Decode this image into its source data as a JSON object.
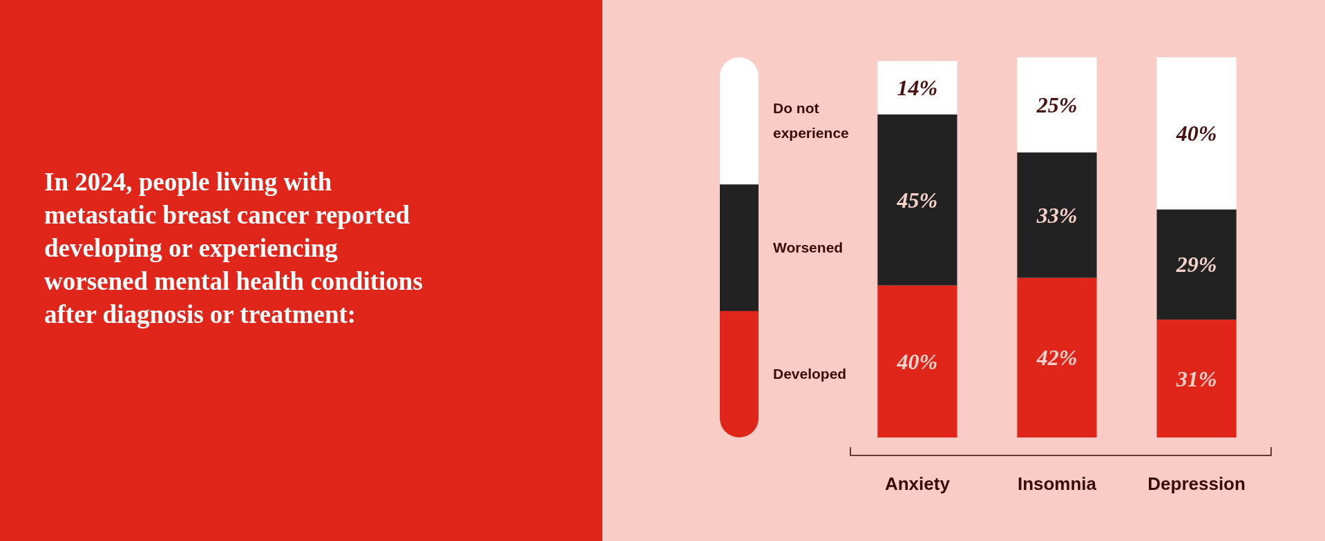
{
  "chart_data": {
    "type": "bar",
    "title": "In 2024, people living with metastatic breast cancer reported developing or experiencing worsened mental health conditions after diagnosis or treatment:",
    "categories": [
      "Anxiety",
      "Insomnia",
      "Depression"
    ],
    "stacked": true,
    "ylim": [
      0,
      100
    ],
    "tick_labels": "x",
    "legend": "left",
    "series": [
      {
        "name": "Developed",
        "color": "#e0251b",
        "values": [
          40,
          42,
          31
        ],
        "value_labels": [
          "40%",
          "42%",
          "31%"
        ]
      },
      {
        "name": "Worsened",
        "color": "#222222",
        "values": [
          45,
          33,
          29
        ],
        "value_labels": [
          "45%",
          "33%",
          "29%"
        ]
      },
      {
        "name": "Do not experience",
        "color": "#ffffff",
        "values": [
          14,
          25,
          40
        ],
        "value_labels": [
          "14%",
          "25%",
          "40%"
        ]
      }
    ]
  }
}
